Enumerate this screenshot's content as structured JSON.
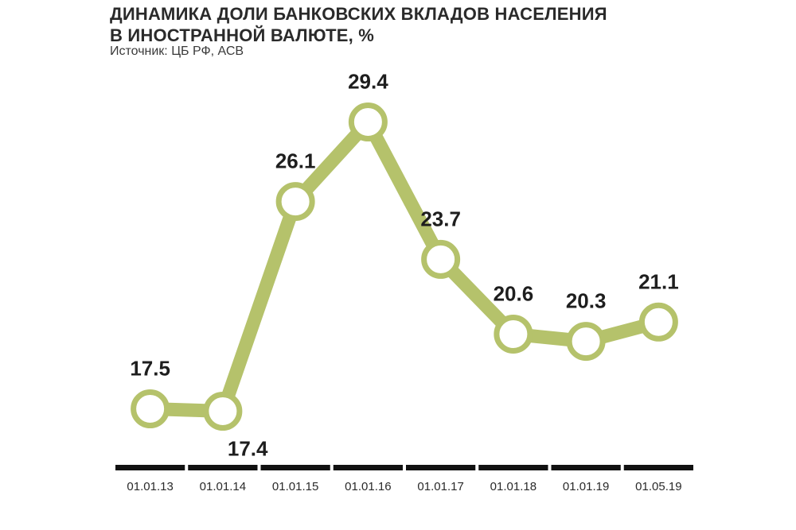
{
  "title_line1": "ДИНАМИКА ДОЛИ БАНКОВСКИХ ВКЛАДОВ НАСЕЛЕНИЯ",
  "title_line2": "В ИНОСТРАННОЙ ВАЛЮТЕ, %",
  "source": "Источник: ЦБ РФ, АСВ",
  "colors": {
    "line": "#b5c26b",
    "marker_fill": "#ffffff",
    "axis": "#111111",
    "text": "#1e1e1e"
  },
  "chart_data": {
    "type": "line",
    "title": "ДИНАМИКА ДОЛИ БАНКОВСКИХ ВКЛАДОВ НАСЕЛЕНИЯ В ИНОСТРАННОЙ ВАЛЮТЕ, %",
    "xlabel": "",
    "ylabel": "",
    "categories": [
      "01.01.13",
      "01.01.14",
      "01.01.15",
      "01.01.16",
      "01.01.17",
      "01.01.18",
      "01.01.19",
      "01.05.19"
    ],
    "series": [
      {
        "values": [
          17.5,
          17.4,
          26.1,
          29.4,
          23.7,
          20.6,
          20.3,
          21.1
        ]
      }
    ],
    "data_labels": [
      "17.5",
      "17.4",
      "26.1",
      "29.4",
      "23.7",
      "20.6",
      "20.3",
      "21.1"
    ],
    "label_placement": [
      "above",
      "below-right",
      "above",
      "above",
      "above",
      "above",
      "above",
      "above"
    ],
    "ylim": [
      16,
      31
    ],
    "grid": false,
    "legend": "none"
  }
}
